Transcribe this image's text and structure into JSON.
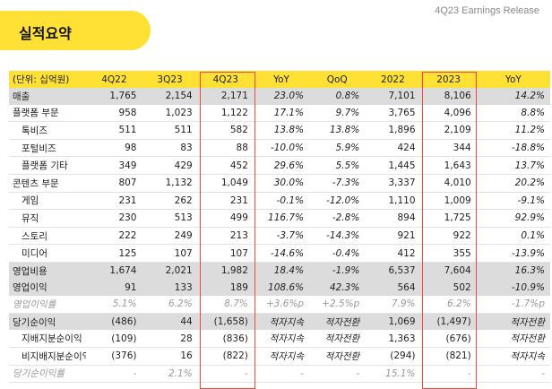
{
  "header": {
    "title": "실적요약",
    "release": "4Q23 Earnings Release"
  },
  "columns": [
    "(단위: 십억원)",
    "4Q22",
    "3Q23",
    "4Q23",
    "YoY",
    "QoQ",
    "2022",
    "2023",
    "YoY"
  ],
  "rows": [
    {
      "label": "매출",
      "style": "gray",
      "cells": [
        "1,765",
        "2,154",
        "2,171",
        "23.0%",
        "0.8%",
        "7,101",
        "8,106",
        "14.2%"
      ]
    },
    {
      "label": "플랫폼 부문",
      "style": "",
      "cells": [
        "958",
        "1,023",
        "1,122",
        "17.1%",
        "9.7%",
        "3,765",
        "4,096",
        "8.8%"
      ]
    },
    {
      "label": "톡비즈",
      "style": "sub",
      "cells": [
        "511",
        "511",
        "582",
        "13.8%",
        "13.8%",
        "1,896",
        "2,109",
        "11.2%"
      ]
    },
    {
      "label": "포털비즈",
      "style": "sub",
      "cells": [
        "98",
        "83",
        "88",
        "-10.0%",
        "5.9%",
        "424",
        "344",
        "-18.8%"
      ]
    },
    {
      "label": "플랫폼 기타",
      "style": "sub",
      "cells": [
        "349",
        "429",
        "452",
        "29.6%",
        "5.5%",
        "1,445",
        "1,643",
        "13.7%"
      ]
    },
    {
      "label": "콘텐츠 부문",
      "style": "",
      "cells": [
        "807",
        "1,132",
        "1,049",
        "30.0%",
        "-7.3%",
        "3,337",
        "4,010",
        "20.2%"
      ]
    },
    {
      "label": "게임",
      "style": "sub",
      "cells": [
        "231",
        "262",
        "231",
        "-0.1%",
        "-12.0%",
        "1,110",
        "1,009",
        "-9.1%"
      ]
    },
    {
      "label": "뮤직",
      "style": "sub",
      "cells": [
        "230",
        "513",
        "499",
        "116.7%",
        "-2.8%",
        "894",
        "1,725",
        "92.9%"
      ]
    },
    {
      "label": "스토리",
      "style": "sub",
      "cells": [
        "222",
        "249",
        "213",
        "-3.7%",
        "-14.3%",
        "921",
        "922",
        "0.1%"
      ]
    },
    {
      "label": "미디어",
      "style": "sub",
      "cells": [
        "125",
        "107",
        "107",
        "-14.6%",
        "-0.4%",
        "412",
        "355",
        "-13.9%"
      ]
    },
    {
      "label": "영업비용",
      "style": "gray",
      "cells": [
        "1,674",
        "2,021",
        "1,982",
        "18.4%",
        "-1.9%",
        "6,537",
        "7,604",
        "16.3%"
      ]
    },
    {
      "label": "영업이익",
      "style": "gray",
      "cells": [
        "91",
        "133",
        "189",
        "108.6%",
        "42.3%",
        "564",
        "502",
        "-10.9%"
      ]
    },
    {
      "label": "영업이익률",
      "style": "muted",
      "cells": [
        "5.1%",
        "6.2%",
        "8.7%",
        "+3.6%p",
        "+2.5%p",
        "7.9%",
        "6.2%",
        "-1.7%p"
      ]
    },
    {
      "label": "당기순이익",
      "style": "gray",
      "cells": [
        "(486)",
        "44",
        "(1,658)",
        "적자지속",
        "적자전환",
        "1,069",
        "(1,497)",
        "적자전환"
      ]
    },
    {
      "label": "지배지분순이익",
      "style": "sub",
      "cells": [
        "(109)",
        "28",
        "(836)",
        "적자지속",
        "적자전환",
        "1,363",
        "(676)",
        "적자전환"
      ]
    },
    {
      "label": "비지배지분순이익",
      "style": "sub",
      "cells": [
        "(376)",
        "16",
        "(822)",
        "적자지속",
        "적자전환",
        "(294)",
        "(821)",
        "적자지속"
      ]
    },
    {
      "label": "당기순이익률",
      "style": "muted",
      "cells": [
        "-",
        "2.1%",
        "-",
        "-",
        "-",
        "15.1%",
        "-",
        "-"
      ]
    }
  ],
  "highlight_columns": [
    "4Q23",
    "2023"
  ]
}
